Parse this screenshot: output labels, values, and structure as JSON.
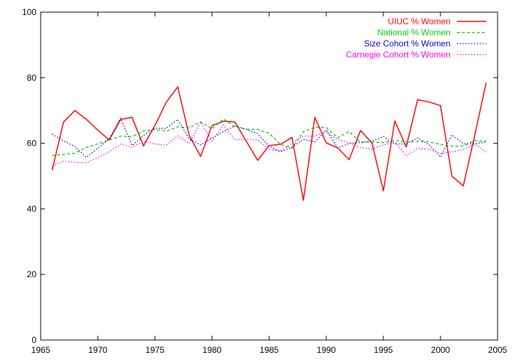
{
  "chart_data": {
    "type": "line",
    "title": "",
    "xlabel": "",
    "ylabel": "",
    "xlim": [
      1965,
      2005
    ],
    "ylim": [
      0,
      100
    ],
    "x_ticks": [
      1965,
      1970,
      1975,
      1980,
      1985,
      1990,
      1995,
      2000,
      2005
    ],
    "y_ticks": [
      0,
      20,
      40,
      60,
      80,
      100
    ],
    "grid": false,
    "legend_position": "top-right",
    "series": [
      {
        "name": "UIUC % Women",
        "color": "#ff0000",
        "style": "solid",
        "x": [
          1966,
          1967,
          1968,
          1969,
          1970,
          1971,
          1972,
          1973,
          1974,
          1975,
          1976,
          1977,
          1978,
          1979,
          1980,
          1981,
          1982,
          1983,
          1984,
          1985,
          1986,
          1987,
          1988,
          1989,
          1990,
          1991,
          1992,
          1993,
          1994,
          1995,
          1996,
          1997,
          1998,
          1999,
          2000,
          2001,
          2002,
          2003,
          2004
        ],
        "values": [
          51.8,
          66.5,
          70.0,
          67.3,
          64.0,
          61.0,
          67.3,
          67.9,
          59.2,
          65.4,
          72.6,
          77.2,
          62.4,
          56.0,
          65.4,
          66.7,
          66.5,
          60.6,
          54.8,
          59.3,
          59.7,
          61.8,
          42.6,
          67.9,
          60.1,
          58.6,
          55.0,
          63.9,
          60.1,
          45.5,
          66.8,
          58.9,
          73.3,
          72.6,
          71.5,
          50.0,
          47.0,
          62.4,
          78.5
        ]
      },
      {
        "name": "National % Women",
        "color": "#00cc00",
        "style": "dashed",
        "x": [
          1966,
          1967,
          1968,
          1969,
          1970,
          1971,
          1972,
          1973,
          1974,
          1975,
          1976,
          1977,
          1978,
          1979,
          1980,
          1981,
          1982,
          1983,
          1984,
          1985,
          1986,
          1987,
          1988,
          1989,
          1990,
          1991,
          1992,
          1993,
          1994,
          1995,
          1996,
          1997,
          1998,
          1999,
          2000,
          2001,
          2002,
          2003,
          2004
        ],
        "values": [
          56.3,
          56.6,
          57.0,
          58.7,
          59.8,
          61.0,
          62.2,
          62.0,
          63.8,
          64.2,
          63.7,
          65.0,
          64.7,
          66.5,
          64.4,
          67.4,
          65.0,
          64.3,
          64.2,
          63.1,
          59.6,
          58.5,
          63.6,
          64.9,
          64.8,
          61.7,
          63.6,
          60.3,
          60.4,
          60.2,
          60.9,
          60.4,
          60.6,
          60.4,
          59.7,
          59.1,
          59.2,
          60.8,
          60.7
        ]
      },
      {
        "name": "Size Cohort % Women",
        "color": "#0000cc",
        "style": "dotted",
        "x": [
          1966,
          1967,
          1968,
          1969,
          1970,
          1971,
          1972,
          1973,
          1974,
          1975,
          1976,
          1977,
          1978,
          1979,
          1980,
          1981,
          1982,
          1983,
          1984,
          1985,
          1986,
          1987,
          1988,
          1989,
          1990,
          1991,
          1992,
          1993,
          1994,
          1995,
          1996,
          1997,
          1998,
          1999,
          2000,
          2001,
          2002,
          2003,
          2004
        ],
        "values": [
          62.8,
          60.7,
          59.0,
          55.7,
          58.5,
          61.4,
          67.7,
          59.3,
          62.3,
          64.6,
          64.6,
          67.3,
          61.3,
          59.5,
          61.6,
          63.5,
          65.3,
          64.3,
          62.9,
          59.1,
          57.4,
          58.8,
          61.2,
          60.4,
          64.1,
          58.6,
          59.9,
          60.3,
          60.6,
          62.1,
          59.8,
          59.8,
          61.6,
          59.6,
          55.8,
          62.6,
          59.9,
          59.9,
          60.4
        ]
      },
      {
        "name": "Carnegie Cohort % Women",
        "color": "#ee00ee",
        "style": "dotted",
        "x": [
          1966,
          1967,
          1968,
          1969,
          1970,
          1971,
          1972,
          1973,
          1974,
          1975,
          1976,
          1977,
          1978,
          1979,
          1980,
          1981,
          1982,
          1983,
          1984,
          1985,
          1986,
          1987,
          1988,
          1989,
          1990,
          1991,
          1992,
          1993,
          1994,
          1995,
          1996,
          1997,
          1998,
          1999,
          2000,
          2001,
          2002,
          2003,
          2004
        ],
        "values": [
          53.0,
          54.6,
          54.2,
          54.0,
          55.6,
          57.4,
          59.7,
          58.8,
          60.6,
          59.8,
          59.4,
          62.3,
          59.9,
          66.5,
          60.7,
          65.6,
          61.1,
          61.2,
          61.0,
          58.1,
          57.7,
          60.0,
          62.2,
          62.2,
          63.6,
          61.1,
          60.2,
          58.7,
          58.2,
          59.5,
          60.4,
          56.2,
          58.4,
          58.2,
          56.9,
          57.4,
          58.1,
          59.8,
          57.3
        ]
      }
    ]
  }
}
